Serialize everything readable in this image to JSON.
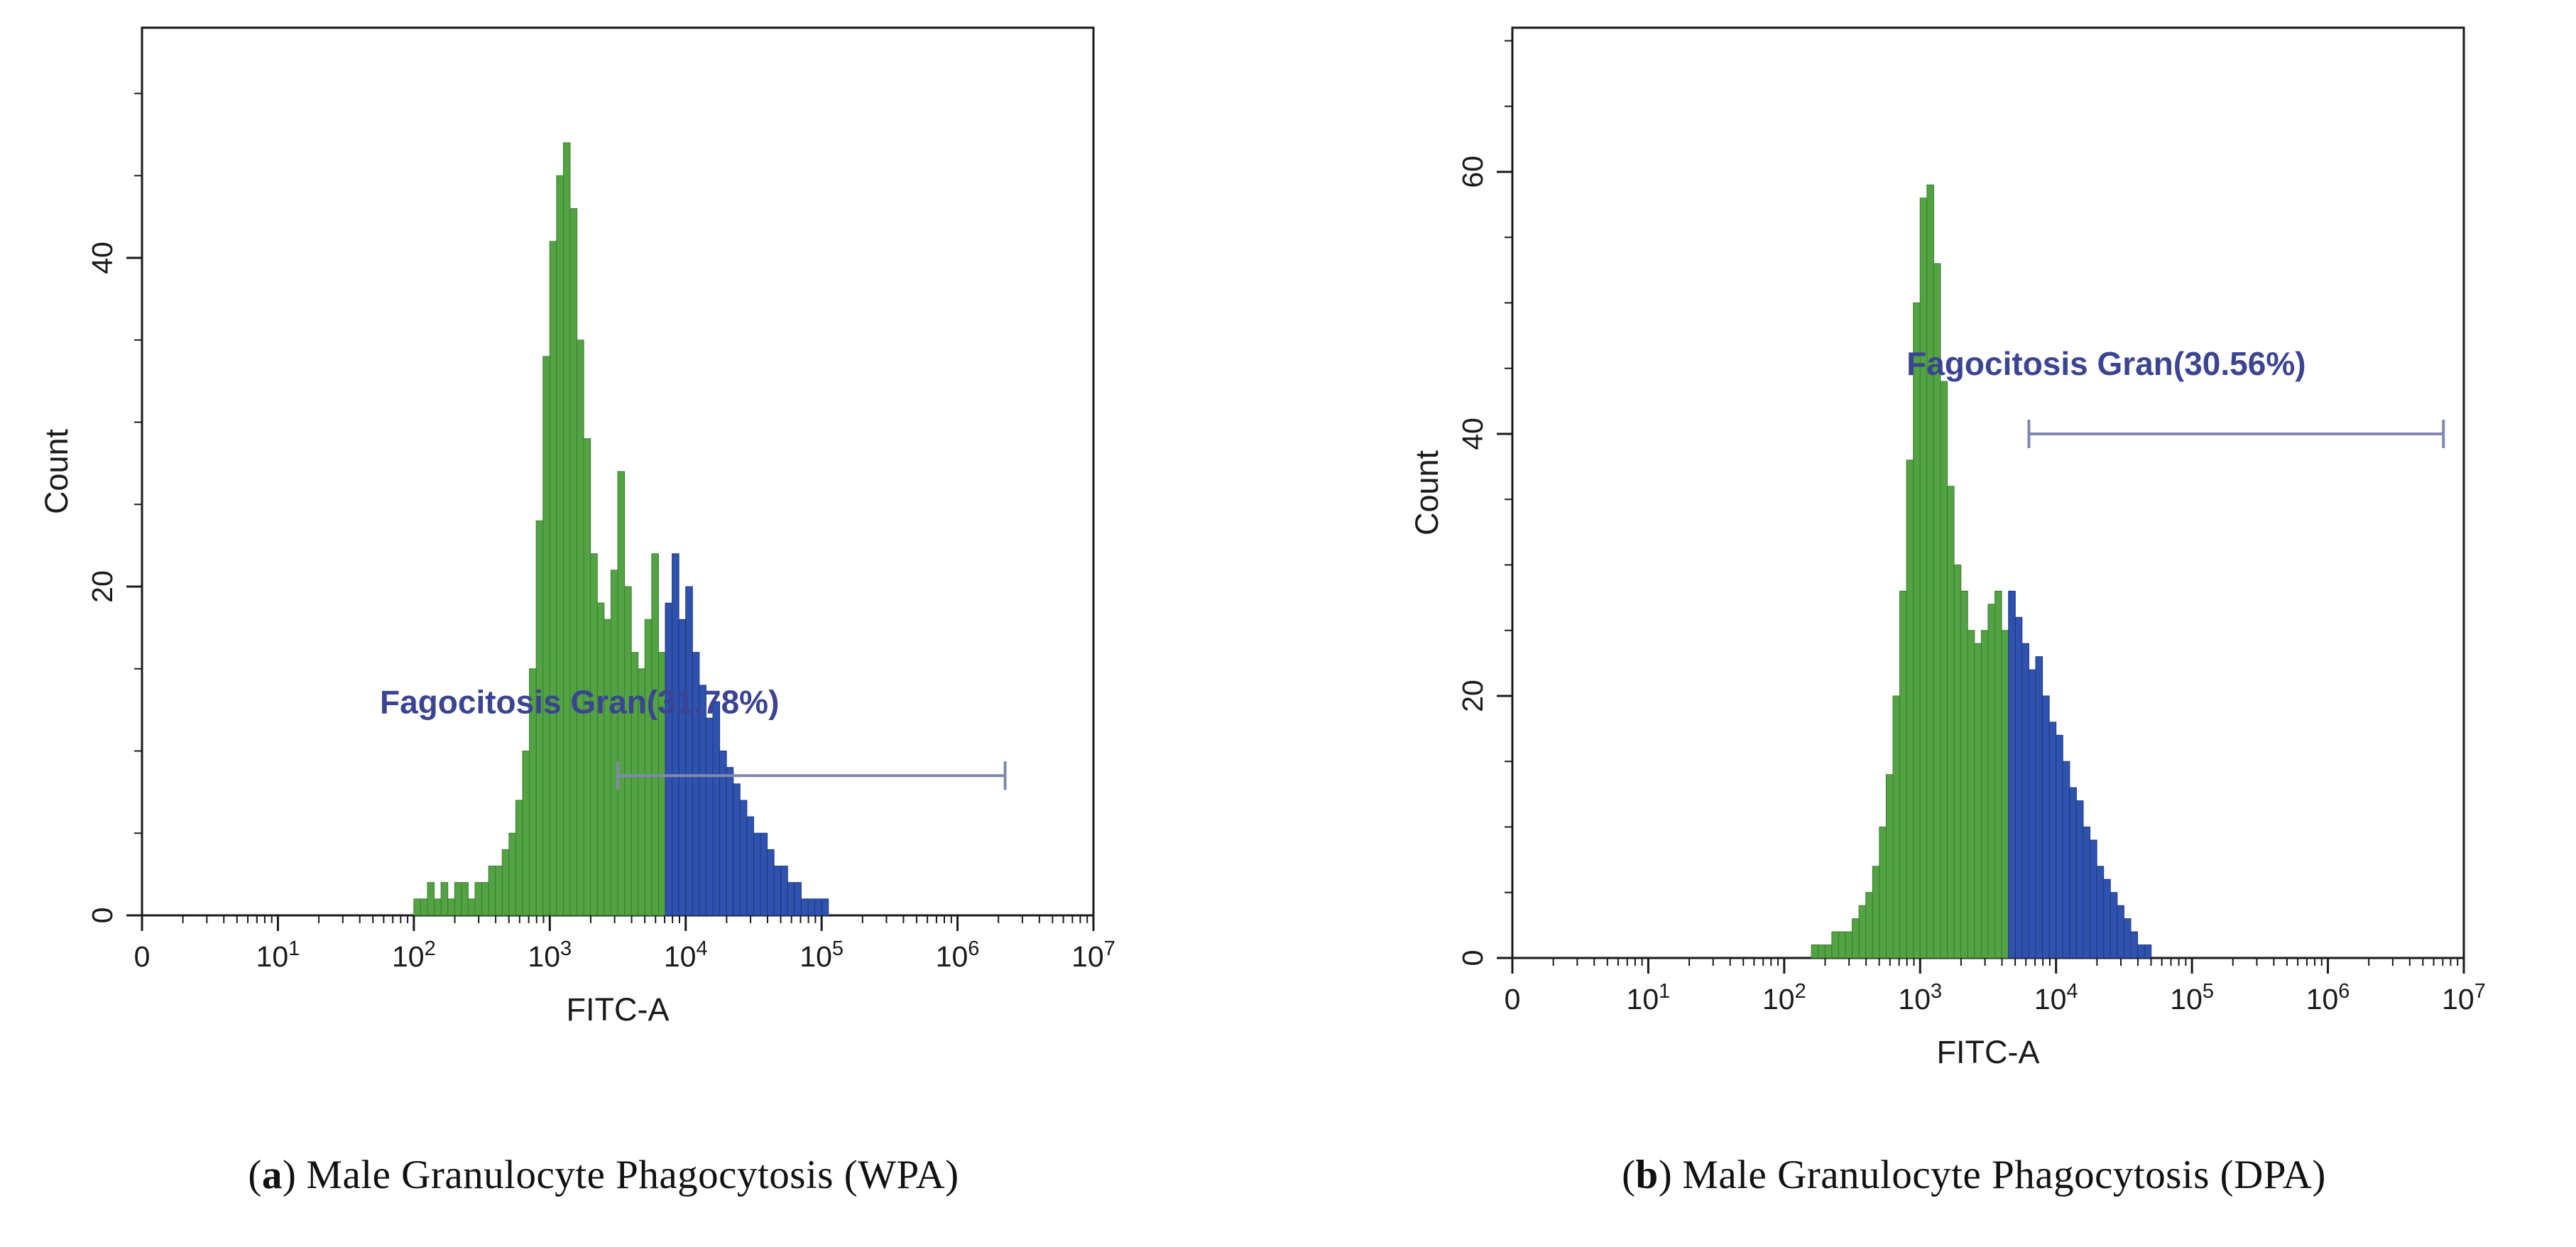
{
  "figure_colors": {
    "green_fill": "#53a344",
    "green_edge": "#3a7d2e",
    "blue_fill": "#2e52ae",
    "blue_edge": "#20397e",
    "gate_line": "#8089ad",
    "gate_text": "#3b4492",
    "axis": "#1a1a1a"
  },
  "chart_data": [
    {
      "id": "a",
      "type": "bar",
      "subtype": "flow-cytometry-histogram",
      "title": "",
      "xlabel": "FITC-A",
      "ylabel": "Count",
      "x_scale": "log-decades",
      "x_ticks": [
        "0",
        "10^1",
        "10^2",
        "10^3",
        "10^4",
        "10^5",
        "10^6",
        "10^7"
      ],
      "x_tick_decades": [
        0,
        1,
        2,
        3,
        4,
        5,
        6,
        7
      ],
      "xlim_decades": [
        0,
        7
      ],
      "y_ticks": [
        0,
        20,
        40
      ],
      "ylim": [
        0,
        54
      ],
      "grid": false,
      "bins_start_decade": 2.0,
      "bin_width_decades": 0.05,
      "counts": [
        1,
        1,
        2,
        1,
        2,
        1,
        2,
        2,
        1,
        2,
        2,
        3,
        3,
        4,
        5,
        7,
        10,
        15,
        24,
        34,
        41,
        45,
        47,
        43,
        35,
        29,
        22,
        19,
        18,
        21,
        27,
        20,
        16,
        15,
        18,
        22,
        16,
        19,
        22,
        18,
        20,
        16,
        14,
        12,
        13,
        10,
        9,
        8,
        7,
        6,
        5,
        5,
        4,
        3,
        3,
        2,
        2,
        1,
        1,
        1,
        1,
        0
      ],
      "blue_start_decade": 3.85,
      "gate": {
        "label": "Fagocitosis Gran(31.78%)",
        "y_count": 8.5,
        "x_start_decade": 3.5,
        "x_end_decade": 6.35,
        "label_x_decade": 1.75,
        "label_y_count": 12.3
      }
    },
    {
      "id": "b",
      "type": "bar",
      "subtype": "flow-cytometry-histogram",
      "title": "",
      "xlabel": "FITC-A",
      "ylabel": "Count",
      "x_scale": "log-decades",
      "x_ticks": [
        "0",
        "10^1",
        "10^2",
        "10^3",
        "10^4",
        "10^5",
        "10^6",
        "10^7"
      ],
      "x_tick_decades": [
        0,
        1,
        2,
        3,
        4,
        5,
        6,
        7
      ],
      "xlim_decades": [
        0,
        7
      ],
      "y_ticks": [
        0,
        20,
        40,
        60
      ],
      "ylim": [
        0,
        71
      ],
      "grid": false,
      "bins_start_decade": 2.2,
      "bin_width_decades": 0.05,
      "counts": [
        1,
        1,
        1,
        2,
        2,
        2,
        3,
        4,
        5,
        7,
        10,
        14,
        20,
        28,
        38,
        50,
        58,
        59,
        53,
        44,
        36,
        30,
        28,
        25,
        24,
        25,
        27,
        28,
        25,
        28,
        26,
        24,
        22,
        23,
        20,
        18,
        17,
        15,
        13,
        12,
        10,
        9,
        7,
        6,
        5,
        4,
        3,
        2,
        1,
        1,
        0
      ],
      "blue_start_decade": 3.65,
      "gate": {
        "label": "Fagocitosis Gran(30.56%)",
        "y_count": 40,
        "x_start_decade": 3.8,
        "x_end_decade": 6.85,
        "label_x_decade": 2.9,
        "label_y_count": 44.5
      }
    }
  ],
  "captions": [
    {
      "letter": "a",
      "text": "Male Granulocyte Phagocytosis (WPA)"
    },
    {
      "letter": "b",
      "text": "Male Granulocyte Phagocytosis (DPA)"
    }
  ]
}
